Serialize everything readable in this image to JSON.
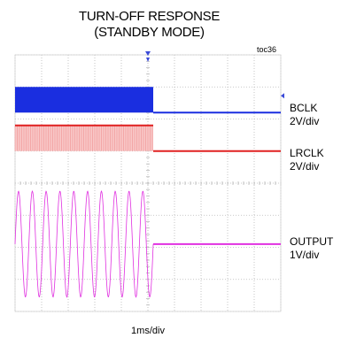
{
  "chart_data": {
    "type": "line",
    "title": "TURN-OFF RESPONSE",
    "subtitle": "(STANDBY MODE)",
    "figure_id": "toc36",
    "xlabel": "1ms/div",
    "x_divisions": 10,
    "y_divisions": 8,
    "turn_off_time_div": 5.2,
    "grid": true,
    "colors": {
      "grid": "#b8b8b8",
      "bclk": "#1a2ee0",
      "lrclk": "#e02020",
      "output": "#e030e0",
      "marker": "#3a4ad8"
    },
    "series": [
      {
        "name": "BCLK",
        "scale": "2V/div",
        "active_level_div": [
          1.0,
          1.8
        ],
        "off_level_div": 1.8
      },
      {
        "name": "LRCLK",
        "scale": "2V/div",
        "active_level_div": [
          2.2,
          3.0
        ],
        "off_level_div": 3.0
      },
      {
        "name": "OUTPUT",
        "scale": "1V/div",
        "sine_cycles_before_off": 10,
        "amplitude_div": 1.65,
        "center_div": 5.9,
        "off_level_div": 5.9
      }
    ]
  }
}
